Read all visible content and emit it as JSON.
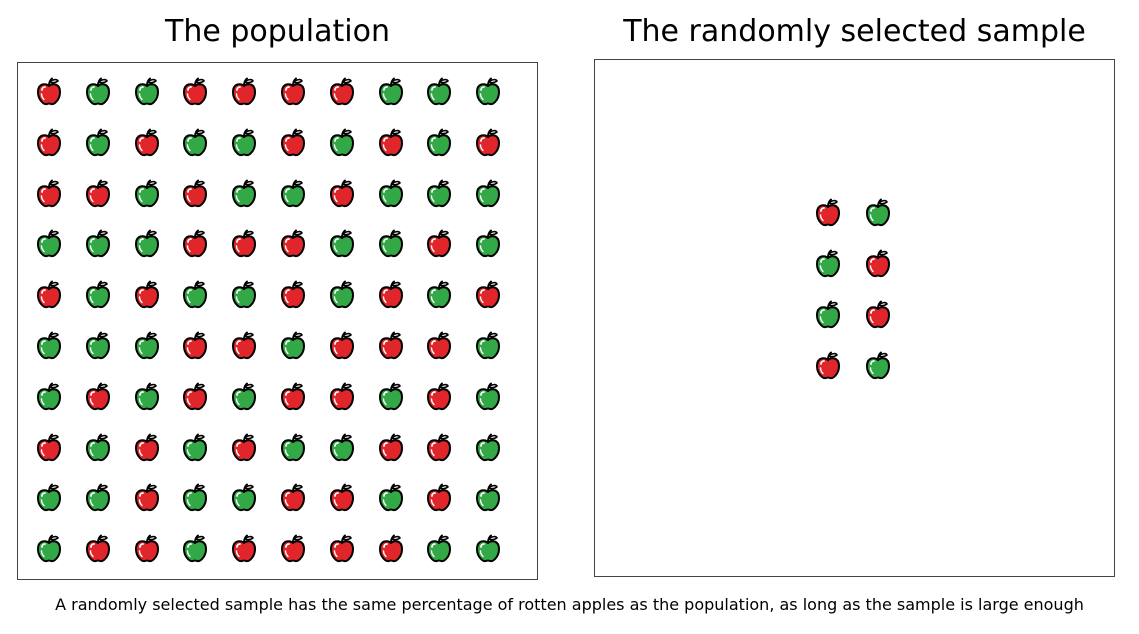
{
  "titles": {
    "population": "The population",
    "sample": "The randomly selected sample"
  },
  "caption": "A randomly selected sample has the same percentage of rotten apples as the population, as long as the sample is large enough",
  "colors": {
    "rotten": "#e0262b",
    "good": "#32a846",
    "outline": "#000000"
  },
  "population": {
    "rows": [
      [
        "rotten",
        "good",
        "good",
        "rotten",
        "rotten",
        "rotten",
        "rotten",
        "good",
        "good",
        "good"
      ],
      [
        "rotten",
        "good",
        "rotten",
        "good",
        "good",
        "rotten",
        "good",
        "rotten",
        "good",
        "rotten"
      ],
      [
        "rotten",
        "rotten",
        "good",
        "rotten",
        "good",
        "good",
        "rotten",
        "good",
        "good",
        "good"
      ],
      [
        "good",
        "good",
        "good",
        "rotten",
        "rotten",
        "rotten",
        "good",
        "good",
        "rotten",
        "good"
      ],
      [
        "rotten",
        "good",
        "rotten",
        "good",
        "good",
        "rotten",
        "good",
        "rotten",
        "good",
        "rotten"
      ],
      [
        "good",
        "good",
        "good",
        "rotten",
        "rotten",
        "good",
        "rotten",
        "rotten",
        "rotten",
        "good"
      ],
      [
        "good",
        "rotten",
        "good",
        "rotten",
        "good",
        "rotten",
        "rotten",
        "good",
        "rotten",
        "good"
      ],
      [
        "rotten",
        "good",
        "rotten",
        "good",
        "rotten",
        "good",
        "good",
        "rotten",
        "rotten",
        "good"
      ],
      [
        "good",
        "good",
        "rotten",
        "good",
        "good",
        "rotten",
        "rotten",
        "good",
        "rotten",
        "good"
      ],
      [
        "good",
        "rotten",
        "rotten",
        "good",
        "rotten",
        "rotten",
        "rotten",
        "rotten",
        "good",
        "good"
      ]
    ]
  },
  "sample": {
    "rows": [
      [
        "rotten",
        "good"
      ],
      [
        "good",
        "rotten"
      ],
      [
        "good",
        "rotten"
      ],
      [
        "rotten",
        "good"
      ]
    ]
  }
}
